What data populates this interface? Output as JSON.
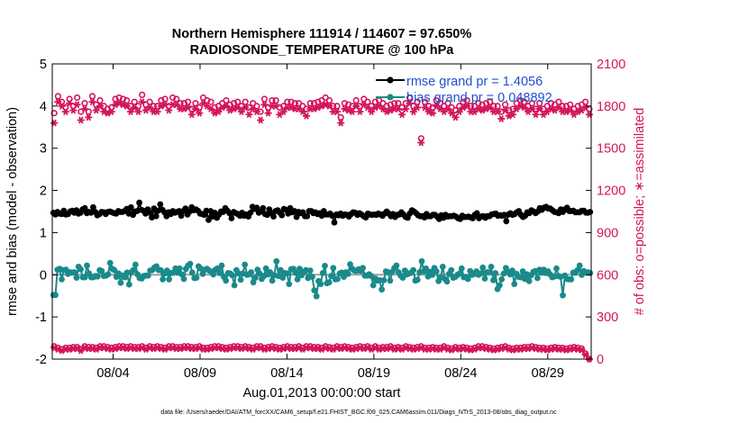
{
  "chart_data": {
    "type": "line",
    "title_line1": "Northern Hemisphere 111914 / 114607 = 97.650%",
    "title_line2": "RADIOSONDE_TEMPERATURE @ 100 hPa",
    "xlabel": "Aug.01,2013 00:00:00 start",
    "ylabel_left": "rmse and bias (model - observation)",
    "ylabel_right": "# of obs: o=possible; ∗=assimilated",
    "footer": "data file: /Users/raeder/DAI/ATM_forcXX/CAM6_setup/f.e21.FHIST_BGC.f09_025.CAM6assim.011/Diags_NTrS_2013-08/obs_diag_output.nc",
    "xlim": [
      0.5,
      31.5
    ],
    "ylim_left": [
      -2,
      5
    ],
    "ylim_right": [
      0,
      2100
    ],
    "x_ticks": [
      {
        "day": 4,
        "label": "08/04"
      },
      {
        "day": 9,
        "label": "08/09"
      },
      {
        "day": 14,
        "label": "08/14"
      },
      {
        "day": 19,
        "label": "08/19"
      },
      {
        "day": 24,
        "label": "08/24"
      },
      {
        "day": 29,
        "label": "08/29"
      }
    ],
    "y_ticks_left": [
      "-2",
      "-1",
      "0",
      "1",
      "2",
      "3",
      "4",
      "5"
    ],
    "y_ticks_right": [
      "0",
      "300",
      "600",
      "900",
      "1200",
      "1500",
      "1800",
      "2100"
    ],
    "colors": {
      "rmse": "#000000",
      "bias": "#1a8a8a",
      "obs": "#d4145a",
      "legend_text": "#1f4fd6",
      "zero_line": "#a0a0a0"
    },
    "legend": {
      "rmse_label": "rmse grand pr = 1.4056",
      "bias_label": "bias grand pr = 0.048892"
    },
    "series": {
      "rmse": [
        1.47,
        1.43,
        1.49,
        1.45,
        1.44,
        1.52,
        1.43,
        1.44,
        1.5,
        1.52,
        1.47,
        1.53,
        1.45,
        1.47,
        1.55,
        1.58,
        1.46,
        1.49,
        1.47,
        1.6,
        1.49,
        1.41,
        1.44,
        1.49,
        1.48,
        1.44,
        1.49,
        1.5,
        1.48,
        1.46,
        1.45,
        1.51,
        1.49,
        1.49,
        1.51,
        1.56,
        1.45,
        1.6,
        1.42,
        1.5,
        1.51,
        1.71,
        1.54,
        1.52,
        1.45,
        1.55,
        1.47,
        1.36,
        1.57,
        1.39,
        1.52,
        1.67,
        1.54,
        1.48,
        1.39,
        1.48,
        1.44,
        1.51,
        1.47,
        1.49,
        1.51,
        1.4,
        1.51,
        1.57,
        1.43,
        1.5,
        1.6,
        1.53,
        1.55,
        1.52,
        1.45,
        1.44,
        1.42,
        1.52,
        1.3,
        1.51,
        1.38,
        1.47,
        1.35,
        1.43,
        1.5,
        1.49,
        1.58,
        1.52,
        1.46,
        1.34,
        1.49,
        1.46,
        1.44,
        1.4,
        1.47,
        1.4,
        1.43,
        1.38,
        1.47,
        1.61,
        1.56,
        1.59,
        1.47,
        1.5,
        1.58,
        1.44,
        1.42,
        1.55,
        1.46,
        1.38,
        1.51,
        1.53,
        1.47,
        1.41,
        1.56,
        1.54,
        1.45,
        1.58,
        1.48,
        1.51,
        1.37,
        1.49,
        1.46,
        1.48,
        1.39,
        1.39,
        1.51,
        1.51,
        1.46,
        1.48,
        1.44,
        1.46,
        1.4,
        1.51,
        1.43,
        1.43,
        1.45,
        1.4,
        1.24,
        1.43,
        1.41,
        1.45,
        1.4,
        1.43,
        1.42,
        1.38,
        1.44,
        1.48,
        1.47,
        1.42,
        1.46,
        1.43,
        1.39,
        1.36,
        1.45,
        1.43,
        1.42,
        1.43,
        1.42,
        1.45,
        1.43,
        1.4,
        1.45,
        1.5,
        1.45,
        1.39,
        1.44,
        1.37,
        1.42,
        1.43,
        1.48,
        1.43,
        1.37,
        1.35,
        1.45,
        1.53,
        1.5,
        1.46,
        1.41,
        1.39,
        1.39,
        1.36,
        1.44,
        1.39,
        1.39,
        1.42,
        1.42,
        1.38,
        1.32,
        1.41,
        1.35,
        1.42,
        1.38,
        1.39,
        1.39,
        1.4,
        1.38,
        1.34,
        1.32,
        1.4,
        1.37,
        1.37,
        1.38,
        1.36,
        1.34,
        1.42,
        1.46,
        1.34,
        1.38,
        1.39,
        1.35,
        1.39,
        1.39,
        1.43,
        1.44,
        1.45,
        1.4,
        1.41,
        1.4,
        1.42,
        1.27,
        1.43,
        1.46,
        1.42,
        1.44,
        1.48,
        1.51,
        1.42,
        1.37,
        1.4,
        1.48,
        1.46,
        1.53,
        1.5,
        1.46,
        1.5,
        1.58,
        1.54,
        1.59,
        1.61,
        1.57,
        1.57,
        1.53,
        1.49,
        1.48,
        1.46,
        1.55,
        1.49,
        1.55,
        1.59,
        1.51,
        1.51,
        1.52,
        1.48,
        1.48,
        1.48,
        1.52,
        1.52,
        1.47,
        1.47,
        1.49
      ],
      "bias": [
        -0.48,
        -0.48,
        0.12,
        0.14,
        -0.11,
        0.11,
        0.12,
        0.02,
        0.06,
        0.05,
        0.06,
        -0.07,
        0.19,
        0.13,
        -0.06,
        -0.06,
        0.22,
        0.03,
        -0.06,
        -0.06,
        -0.03,
        -0.04,
        0.11,
        0.09,
        -0.03,
        -0.02,
        0.01,
        0.28,
        0.14,
        0.11,
        -0.05,
        0.03,
        -0.19,
        -0.02,
        -0.06,
        0.05,
        -0.23,
        0.06,
        0.11,
        0.24,
        0.01,
        -0.08,
        -0.09,
        -0.03,
        -0.02,
        -0.02,
        0.1,
        0.11,
        0.17,
        0.2,
        0.11,
        0.11,
        -0.11,
        0.03,
        0.1,
        -0.11,
        0.04,
        0.05,
        0.15,
        0.05,
        0.15,
        0.01,
        -0.1,
        0.14,
        0.22,
        0.26,
        0.05,
        -0.08,
        -0.07,
        0.2,
        0.15,
        0.02,
        0.12,
        0.14,
        0.1,
        0.07,
        0.01,
        0.12,
        0.15,
        0.04,
        0.22,
        -0.05,
        -0.14,
        0.04,
        0.03,
        -0.01,
        -0.25,
        0.11,
        0.03,
        -0.12,
        0.03,
        0.24,
        0.0,
        0.01,
        0.06,
        -0.18,
        -0.07,
        0.12,
        0.03,
        -0.1,
        -0.03,
        0.15,
        0.01,
        0.06,
        -0.14,
        -0.01,
        0.32,
        -0.03,
        0.11,
        -0.07,
        0.04,
        0.03,
        -0.22,
        0.13,
        0.14,
        0.05,
        -0.11,
        0.14,
        -0.01,
        0.07,
        0.11,
        -0.08,
        0.1,
        -0.05,
        -0.37,
        -0.51,
        -0.15,
        -0.22,
        0.04,
        0.21,
        -0.2,
        -0.18,
        -0.03,
        0.16,
        -0.11,
        -0.1,
        0.03,
        0.05,
        -0.05,
        0.06,
        0.02,
        0.25,
        0.14,
        0.1,
        0.09,
        0.13,
        0.09,
        0.16,
        -0.02,
        -0.02,
        0.01,
        -0.03,
        -0.25,
        -0.09,
        -0.14,
        -0.13,
        -0.35,
        -0.13,
        0.08,
        0.06,
        -0.14,
        0.07,
        0.16,
        0.22,
        0.06,
        -0.02,
        -0.07,
        0.1,
        0.01,
        0.03,
        0.05,
        0.11,
        -0.14,
        -0.12,
        0.06,
        0.32,
        0.08,
        0.15,
        -0.04,
        0.07,
        0.0,
        0.16,
        0.08,
        -0.15,
        -0.06,
        0.19,
        -0.1,
        -0.16,
        0.02,
        0.11,
        -0.07,
        -0.05,
        0.0,
        0.03,
        0.15,
        -0.06,
        -0.05,
        -0.1,
        0.09,
        0.0,
        0.02,
        0.08,
        0.0,
        0.03,
        0.17,
        -0.09,
        0.06,
        0.06,
        0.19,
        -0.13,
        0.04,
        -0.34,
        -0.25,
        -0.11,
        0.03,
        0.16,
        0.07,
        0.01,
        0.1,
        -0.22,
        0.02,
        -0.05,
        -0.06,
        0.08,
        -0.1,
        0.01,
        -0.15,
        -0.01,
        0.07,
        0.09,
        -0.08,
        0.12,
        0.05,
        0.12,
        0.04,
        0.08,
        0.01,
        -0.06,
        -0.04,
        0.15,
        -0.03,
        -0.05,
        -0.49,
        -0.02,
        -0.1,
        -0.11,
        -0.11,
        0.05,
        0.05,
        0.11,
        0.22,
        0.0,
        0.09,
        0.05,
        0.06,
        0.04
      ],
      "obs_possible": [
        1750,
        1870,
        1830,
        1790,
        1850,
        1800,
        1860,
        1760,
        1820,
        1760,
        1870,
        1810,
        1840,
        1800,
        1780,
        1790,
        1850,
        1860,
        1850,
        1840,
        1800,
        1830,
        1800,
        1880,
        1810,
        1830,
        1800,
        1800,
        1840,
        1850,
        1800,
        1860,
        1850,
        1820,
        1820,
        1830,
        1780,
        1820,
        1790,
        1860,
        1840,
        1830,
        1790,
        1800,
        1820,
        1840,
        1810,
        1820,
        1830,
        1800,
        1830,
        1790,
        1820,
        1800,
        1760,
        1850,
        1790,
        1840,
        1840,
        1790,
        1800,
        1830,
        1830,
        1820,
        1820,
        1800,
        1780,
        1820,
        1820,
        1830,
        1840,
        1860,
        1840,
        1800,
        1800,
        1720,
        1820,
        1810,
        1800,
        1840,
        1800,
        1850,
        1830,
        1800,
        1830,
        1840,
        1820,
        1800,
        1810,
        1820,
        1820,
        1790,
        1820,
        1860,
        1800,
        1830,
        1570,
        1830,
        1800,
        1790,
        1840,
        1820,
        1800,
        1820,
        1790,
        1770,
        1800,
        1830,
        1840,
        1800,
        1800,
        1820,
        1810,
        1820,
        1830,
        1800,
        1800,
        1760,
        1810,
        1770,
        1780,
        1820,
        1840,
        1830,
        1800,
        1820,
        1780,
        1820,
        1780,
        1800,
        1820,
        1810,
        1830,
        1800,
        1800,
        1810,
        1780,
        1800,
        1810,
        1830,
        1780
      ],
      "obs_assim": [
        1680,
        1830,
        1800,
        1760,
        1820,
        1770,
        1810,
        1700,
        1780,
        1720,
        1830,
        1770,
        1800,
        1760,
        1750,
        1760,
        1810,
        1820,
        1810,
        1800,
        1760,
        1790,
        1760,
        1830,
        1770,
        1790,
        1760,
        1760,
        1800,
        1810,
        1770,
        1810,
        1810,
        1780,
        1780,
        1790,
        1740,
        1780,
        1750,
        1820,
        1800,
        1780,
        1750,
        1760,
        1790,
        1800,
        1770,
        1780,
        1790,
        1760,
        1790,
        1740,
        1780,
        1760,
        1700,
        1810,
        1750,
        1800,
        1800,
        1740,
        1760,
        1790,
        1790,
        1780,
        1780,
        1760,
        1730,
        1780,
        1780,
        1790,
        1800,
        1810,
        1800,
        1760,
        1760,
        1680,
        1780,
        1770,
        1760,
        1800,
        1760,
        1810,
        1790,
        1760,
        1790,
        1800,
        1780,
        1760,
        1770,
        1780,
        1780,
        1740,
        1780,
        1820,
        1760,
        1790,
        1540,
        1790,
        1760,
        1750,
        1800,
        1780,
        1760,
        1780,
        1750,
        1720,
        1760,
        1790,
        1800,
        1760,
        1760,
        1780,
        1770,
        1780,
        1790,
        1760,
        1760,
        1710,
        1770,
        1730,
        1740,
        1780,
        1800,
        1790,
        1760,
        1780,
        1740,
        1780,
        1740,
        1760,
        1780,
        1770,
        1790,
        1760,
        1760,
        1770,
        1740,
        1760,
        1770,
        1790,
        1740
      ],
      "bottom_possible": [
        90,
        80,
        70,
        80,
        80,
        85,
        85,
        70,
        90,
        85,
        85,
        80,
        90,
        90,
        85,
        80,
        85,
        90,
        90,
        85,
        90,
        85,
        85,
        90,
        80,
        90,
        85,
        90,
        85,
        80,
        90,
        90,
        85,
        85,
        90,
        90,
        85,
        85,
        90,
        80,
        80,
        85,
        90,
        90,
        85,
        80,
        85,
        90,
        90,
        85,
        90,
        85,
        80,
        90,
        90,
        80,
        85,
        90,
        85,
        80,
        85,
        90,
        85,
        85,
        90,
        80,
        90,
        90,
        85,
        85,
        80,
        90,
        85,
        80,
        90,
        85,
        90,
        85,
        80,
        85,
        90,
        85,
        90,
        80,
        90,
        80,
        85,
        85,
        90,
        80,
        85,
        80,
        90,
        85,
        80,
        85,
        90,
        80,
        80,
        85,
        80,
        80,
        90,
        80,
        75,
        85,
        80,
        85,
        80,
        75,
        80,
        90,
        90,
        85,
        80,
        75,
        80,
        85,
        90,
        80,
        75,
        80,
        80,
        85,
        85,
        90,
        85,
        80,
        80,
        75,
        80,
        85,
        80,
        80,
        75,
        80,
        85,
        80,
        75,
        40,
        0
      ],
      "bottom_assim": [
        80,
        70,
        60,
        70,
        70,
        75,
        75,
        60,
        80,
        75,
        75,
        70,
        80,
        80,
        75,
        70,
        75,
        80,
        80,
        75,
        80,
        75,
        75,
        80,
        70,
        80,
        75,
        80,
        75,
        70,
        80,
        80,
        75,
        75,
        80,
        80,
        75,
        75,
        80,
        70,
        70,
        75,
        80,
        80,
        75,
        70,
        75,
        80,
        80,
        75,
        80,
        75,
        70,
        80,
        80,
        70,
        75,
        80,
        75,
        70,
        75,
        80,
        75,
        75,
        80,
        70,
        80,
        80,
        75,
        75,
        70,
        80,
        75,
        70,
        80,
        75,
        80,
        75,
        70,
        75,
        80,
        75,
        80,
        70,
        80,
        70,
        75,
        75,
        80,
        70,
        75,
        70,
        80,
        75,
        70,
        75,
        80,
        70,
        70,
        75,
        70,
        70,
        80,
        70,
        65,
        75,
        70,
        75,
        70,
        65,
        70,
        80,
        80,
        75,
        70,
        65,
        70,
        75,
        80,
        70,
        65,
        70,
        70,
        75,
        75,
        80,
        75,
        70,
        70,
        65,
        70,
        75,
        70,
        70,
        65,
        70,
        75,
        70,
        65,
        30,
        0
      ]
    }
  }
}
